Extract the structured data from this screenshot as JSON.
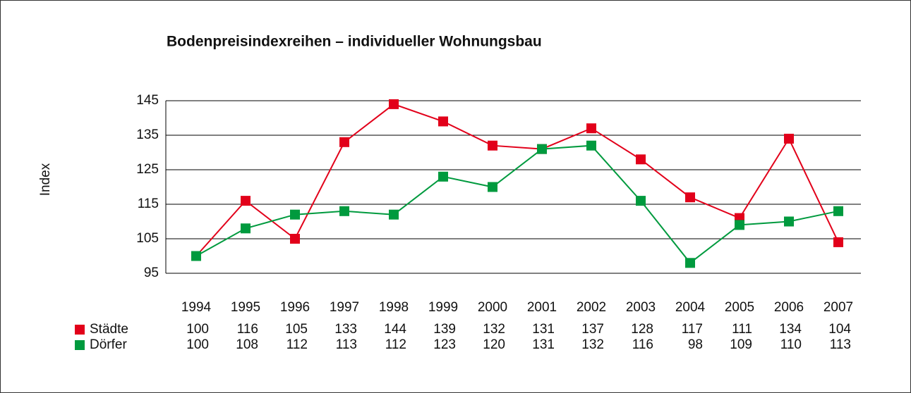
{
  "chart_data": {
    "type": "line",
    "title": "Bodenpreisindexreihen – individueller Wohnungsbau",
    "y_label": "Index",
    "categories": [
      "1994",
      "1995",
      "1996",
      "1997",
      "1998",
      "1999",
      "2000",
      "2001",
      "2002",
      "2003",
      "2004",
      "2005",
      "2006",
      "2007"
    ],
    "series": [
      {
        "name": "Städte",
        "color": "#e2001a",
        "values": [
          100,
          116,
          105,
          133,
          144,
          139,
          132,
          131,
          137,
          128,
          117,
          111,
          134,
          104
        ]
      },
      {
        "name": "Dörfer",
        "color": "#009a3e",
        "values": [
          100,
          108,
          112,
          113,
          112,
          123,
          120,
          131,
          132,
          116,
          98,
          109,
          110,
          113
        ]
      }
    ],
    "ylim": [
      95,
      145
    ],
    "yticks": [
      95,
      105,
      115,
      125,
      135,
      145
    ],
    "grid": true
  }
}
